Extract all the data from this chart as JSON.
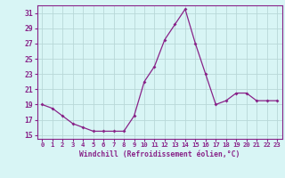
{
  "hours": [
    0,
    1,
    2,
    3,
    4,
    5,
    6,
    7,
    8,
    9,
    10,
    11,
    12,
    13,
    14,
    15,
    16,
    17,
    18,
    19,
    20,
    21,
    22,
    23
  ],
  "values": [
    19,
    18.5,
    17.5,
    16.5,
    16,
    15.5,
    15.5,
    15.5,
    15.5,
    17.5,
    22,
    24,
    27.5,
    29.5,
    31.5,
    27,
    23,
    19,
    19.5,
    20.5,
    20.5,
    19.5,
    19.5,
    19.5
  ],
  "xlabel": "Windchill (Refroidissement éolien,°C)",
  "xlim": [
    -0.5,
    23.5
  ],
  "ylim": [
    14.5,
    32
  ],
  "yticks": [
    15,
    17,
    19,
    21,
    23,
    25,
    27,
    29,
    31
  ],
  "xticks": [
    0,
    1,
    2,
    3,
    4,
    5,
    6,
    7,
    8,
    9,
    10,
    11,
    12,
    13,
    14,
    15,
    16,
    17,
    18,
    19,
    20,
    21,
    22,
    23
  ],
  "line_color": "#882288",
  "marker": "D",
  "marker_size": 2.0,
  "bg_color": "#d8f5f5",
  "grid_color": "#b8d8d8",
  "label_color": "#882288",
  "tick_color": "#882288",
  "border_color": "#882288",
  "font_size_x": 5.2,
  "font_size_y": 5.8,
  "font_size_label": 5.8
}
